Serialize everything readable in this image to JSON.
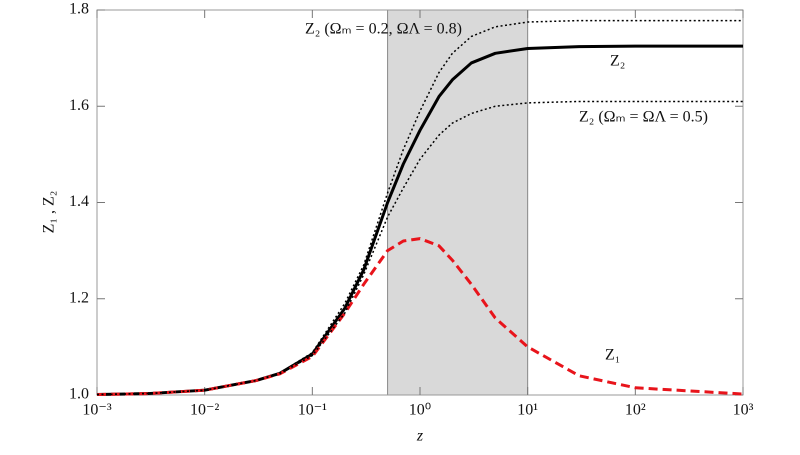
{
  "chart_data": {
    "type": "line",
    "x_label": "z",
    "y_label": "Z₁ ,  Z₂",
    "xscale": "log",
    "xlim": [
      0.001,
      1000
    ],
    "xticks": [
      {
        "value": 0.001,
        "label": "10⁻³"
      },
      {
        "value": 0.01,
        "label": "10⁻²"
      },
      {
        "value": 0.1,
        "label": "10⁻¹"
      },
      {
        "value": 1,
        "label": "10⁰"
      },
      {
        "value": 10,
        "label": "10¹"
      },
      {
        "value": 100,
        "label": "10²"
      },
      {
        "value": 1000,
        "label": "10³"
      }
    ],
    "ylim": [
      1,
      1.8
    ],
    "yticks": [
      {
        "value": 1,
        "label": "1.0"
      },
      1.2,
      1.4,
      1.6,
      1.8
    ],
    "shaded_region": [
      0.5,
      10
    ],
    "shaded_color": "#d9d9d9",
    "x": [
      0.001,
      0.003,
      0.01,
      0.03,
      0.05,
      0.1,
      0.2,
      0.3,
      0.5,
      0.7,
      1,
      1.5,
      2,
      3,
      5,
      10,
      30,
      100,
      1000
    ],
    "series": [
      {
        "name": "Z₂",
        "color": "#000000",
        "style": "solid",
        "values": [
          1.001,
          1.003,
          1.01,
          1.03,
          1.045,
          1.085,
          1.18,
          1.26,
          1.4,
          1.48,
          1.55,
          1.62,
          1.655,
          1.69,
          1.71,
          1.72,
          1.724,
          1.725,
          1.725
        ]
      },
      {
        "name": "Z₁",
        "color": "#e8141b",
        "style": "dashed",
        "values": [
          1.001,
          1.003,
          1.01,
          1.03,
          1.044,
          1.08,
          1.17,
          1.23,
          1.3,
          1.32,
          1.325,
          1.31,
          1.28,
          1.23,
          1.16,
          1.1,
          1.04,
          1.015,
          1.002
        ]
      },
      {
        "name": "Z₂ (Ωₘ = 0.2, ΩΛ = 0.8)",
        "color": "#000000",
        "style": "dotted",
        "values": [
          1.001,
          1.003,
          1.01,
          1.03,
          1.046,
          1.088,
          1.19,
          1.27,
          1.42,
          1.51,
          1.59,
          1.67,
          1.71,
          1.745,
          1.765,
          1.775,
          1.778,
          1.778,
          1.778
        ]
      },
      {
        "name": "Z₂ (Ωₘ = ΩΛ = 0.5)",
        "color": "#000000",
        "style": "dotted",
        "values": [
          1.001,
          1.003,
          1.01,
          1.03,
          1.044,
          1.082,
          1.17,
          1.25,
          1.37,
          1.43,
          1.49,
          1.54,
          1.565,
          1.585,
          1.6,
          1.607,
          1.61,
          1.61,
          1.61
        ]
      }
    ]
  }
}
